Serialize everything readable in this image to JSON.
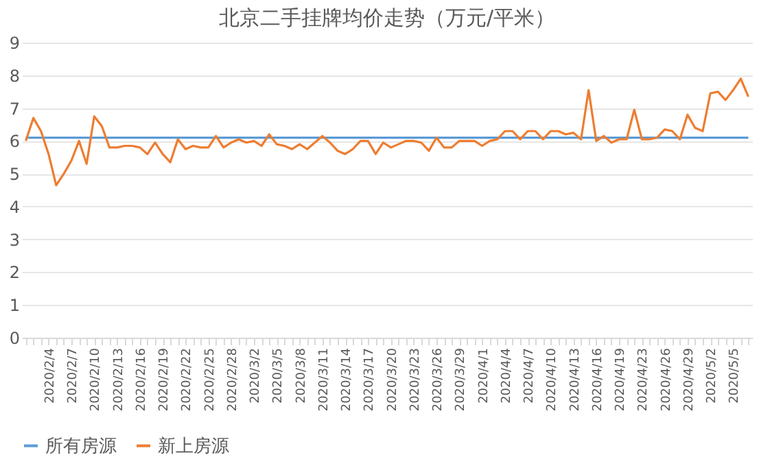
{
  "chart_data": {
    "type": "line",
    "title": "北京二手挂牌均价走势（万元/平米）",
    "categories": [
      null,
      null,
      null,
      "2020/2/4",
      null,
      null,
      "2020/2/7",
      null,
      null,
      "2020/2/10",
      null,
      null,
      "2020/2/13",
      null,
      null,
      "2020/2/16",
      null,
      null,
      "2020/2/19",
      null,
      null,
      "2020/2/22",
      null,
      null,
      "2020/2/25",
      null,
      null,
      "2020/2/28",
      null,
      null,
      "2020/3/2",
      null,
      null,
      "2020/3/5",
      null,
      null,
      "2020/3/8",
      null,
      null,
      "2020/3/11",
      null,
      null,
      "2020/3/14",
      null,
      null,
      "2020/3/17",
      null,
      null,
      "2020/3/20",
      null,
      null,
      "2020/3/23",
      null,
      null,
      "2020/3/26",
      null,
      null,
      "2020/3/29",
      null,
      null,
      "2020/4/1",
      null,
      null,
      "2020/4/4",
      null,
      null,
      "2020/4/7",
      null,
      null,
      "2020/4/10",
      null,
      null,
      "2020/4/13",
      null,
      null,
      "2020/4/16",
      null,
      null,
      "2020/4/19",
      null,
      null,
      "2020/4/23",
      null,
      null,
      "2020/4/26",
      null,
      null,
      "2020/4/29",
      null,
      null,
      "2020/5/2",
      null,
      null,
      "2020/5/5",
      null,
      null
    ],
    "series": [
      {
        "name": "所有房源",
        "color": "#5b9bd5",
        "values": [
          6.1,
          6.1,
          6.1,
          6.1,
          6.1,
          6.1,
          6.1,
          6.1,
          6.1,
          6.1,
          6.1,
          6.1,
          6.1,
          6.1,
          6.1,
          6.1,
          6.1,
          6.1,
          6.1,
          6.1,
          6.1,
          6.1,
          6.1,
          6.1,
          6.1,
          6.1,
          6.1,
          6.1,
          6.1,
          6.1,
          6.1,
          6.1,
          6.1,
          6.1,
          6.1,
          6.1,
          6.1,
          6.1,
          6.1,
          6.1,
          6.1,
          6.1,
          6.1,
          6.1,
          6.1,
          6.1,
          6.1,
          6.1,
          6.1,
          6.1,
          6.1,
          6.1,
          6.1,
          6.1,
          6.1,
          6.1,
          6.1,
          6.1,
          6.1,
          6.1,
          6.1,
          6.1,
          6.1,
          6.1,
          6.1,
          6.1,
          6.1,
          6.1,
          6.1,
          6.1,
          6.1,
          6.1,
          6.1,
          6.1,
          6.1,
          6.1,
          6.1,
          6.1,
          6.1,
          6.1,
          6.1,
          6.1,
          6.1,
          6.1,
          6.1,
          6.1,
          6.1,
          6.1,
          6.1,
          6.1,
          6.1,
          6.1,
          6.1,
          6.1,
          6.1,
          6.1
        ]
      },
      {
        "name": "新上房源",
        "color": "#ed7d31",
        "values": [
          6.0,
          6.7,
          6.3,
          5.6,
          4.65,
          5.0,
          5.4,
          6.0,
          5.3,
          6.75,
          6.45,
          5.8,
          5.8,
          5.85,
          5.85,
          5.8,
          5.6,
          5.95,
          5.6,
          5.35,
          6.05,
          5.75,
          5.85,
          5.8,
          5.8,
          6.15,
          5.8,
          5.95,
          6.05,
          5.95,
          6.0,
          5.85,
          6.2,
          5.9,
          5.85,
          5.75,
          5.9,
          5.75,
          5.95,
          6.15,
          5.95,
          5.7,
          5.6,
          5.75,
          6.0,
          6.0,
          5.6,
          5.95,
          5.8,
          5.9,
          6.0,
          6.0,
          5.95,
          5.7,
          6.1,
          5.8,
          5.8,
          6.0,
          6.0,
          6.0,
          5.85,
          6.0,
          6.05,
          6.3,
          6.3,
          6.05,
          6.3,
          6.3,
          6.05,
          6.3,
          6.3,
          6.2,
          6.25,
          6.05,
          7.55,
          6.0,
          6.15,
          5.95,
          6.05,
          6.05,
          6.95,
          6.05,
          6.05,
          6.1,
          6.35,
          6.3,
          6.05,
          6.8,
          6.4,
          6.3,
          7.45,
          7.5,
          7.25,
          7.55,
          7.9,
          7.35
        ]
      }
    ],
    "ylim": [
      0,
      9
    ],
    "yticks": [
      0,
      1,
      2,
      3,
      4,
      5,
      6,
      7,
      8,
      9
    ],
    "grid": "y",
    "legend": "bottom",
    "line_style": "solid",
    "marker": "none"
  }
}
